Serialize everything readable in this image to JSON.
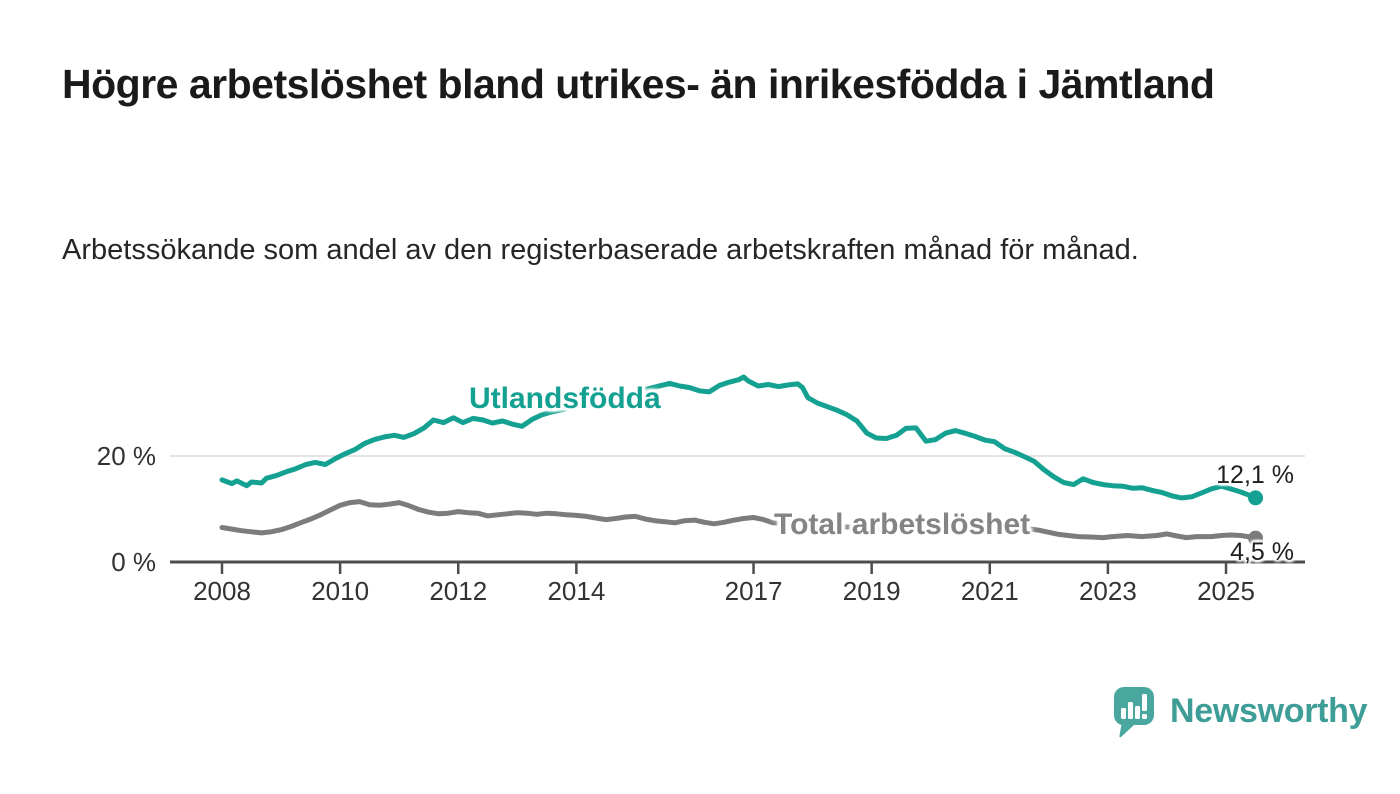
{
  "title": "Högre arbetslöshet bland utrikes- än inrikesfödda i Jämtland",
  "subtitle": "Arbetssökande som andel av den registerbaserade arbetskraften månad för månad.",
  "brand": {
    "name": "Newsworthy",
    "icon": "newsworthy-speech-bubble-chart-icon",
    "icon_color": "#4aa79f",
    "text_color": "#3e9d96"
  },
  "colors": {
    "foreign_born_line": "#14a191",
    "total_line": "#7c7c7c",
    "axis": "#4d4d4d",
    "gridline": "#e4e4e4",
    "tick_text": "#333333"
  },
  "chart_data": {
    "type": "line",
    "title": "Högre arbetslöshet bland utrikes- än inrikesfödda i Jämtland",
    "subtitle": "Arbetssökande som andel av den registerbaserade arbetskraften månad för månad.",
    "unit": "%",
    "xlim": [
      2007.1,
      2026.35
    ],
    "ylim": [
      0,
      37
    ],
    "grid": "y-only-at-20",
    "legend_position": "inline-labels-on-lines",
    "yticks": [
      {
        "value": 0,
        "label": "0 %"
      },
      {
        "value": 20,
        "label": "20 %"
      }
    ],
    "xticks": [
      {
        "value": 2008,
        "label": "2008"
      },
      {
        "value": 2010,
        "label": "2010"
      },
      {
        "value": 2012,
        "label": "2012"
      },
      {
        "value": 2014,
        "label": "2014"
      },
      {
        "value": 2017,
        "label": "2017"
      },
      {
        "value": 2019,
        "label": "2019"
      },
      {
        "value": 2021,
        "label": "2021"
      },
      {
        "value": 2023,
        "label": "2023"
      },
      {
        "value": 2025,
        "label": "2025"
      }
    ],
    "series": [
      {
        "name": "Utlandsfödda",
        "color": "#14a191",
        "end_label": "12,1 %",
        "end_value": 12.1,
        "points": [
          [
            2008.0,
            15.5
          ],
          [
            2008.17,
            14.8
          ],
          [
            2008.25,
            15.3
          ],
          [
            2008.42,
            14.4
          ],
          [
            2008.5,
            15.1
          ],
          [
            2008.67,
            14.9
          ],
          [
            2008.75,
            15.8
          ],
          [
            2008.92,
            16.3
          ],
          [
            2009.08,
            17.0
          ],
          [
            2009.25,
            17.6
          ],
          [
            2009.42,
            18.4
          ],
          [
            2009.58,
            18.8
          ],
          [
            2009.75,
            18.4
          ],
          [
            2009.92,
            19.5
          ],
          [
            2010.08,
            20.4
          ],
          [
            2010.25,
            21.2
          ],
          [
            2010.42,
            22.4
          ],
          [
            2010.58,
            23.1
          ],
          [
            2010.75,
            23.6
          ],
          [
            2010.92,
            23.9
          ],
          [
            2011.08,
            23.5
          ],
          [
            2011.25,
            24.2
          ],
          [
            2011.42,
            25.3
          ],
          [
            2011.58,
            26.8
          ],
          [
            2011.75,
            26.3
          ],
          [
            2011.92,
            27.2
          ],
          [
            2012.08,
            26.3
          ],
          [
            2012.25,
            27.1
          ],
          [
            2012.42,
            26.8
          ],
          [
            2012.58,
            26.2
          ],
          [
            2012.75,
            26.6
          ],
          [
            2012.92,
            26.0
          ],
          [
            2013.08,
            25.6
          ],
          [
            2013.25,
            26.9
          ],
          [
            2013.42,
            27.8
          ],
          [
            2013.58,
            28.3
          ],
          [
            2013.83,
            28.9
          ],
          [
            2014.08,
            29.6
          ],
          [
            2014.33,
            30.2
          ],
          [
            2014.58,
            30.9
          ],
          [
            2014.83,
            31.6
          ],
          [
            2015.08,
            32.3
          ],
          [
            2015.33,
            33.0
          ],
          [
            2015.58,
            33.7
          ],
          [
            2015.75,
            33.2
          ],
          [
            2015.92,
            32.9
          ],
          [
            2016.08,
            32.3
          ],
          [
            2016.25,
            32.1
          ],
          [
            2016.42,
            33.3
          ],
          [
            2016.58,
            33.9
          ],
          [
            2016.75,
            34.4
          ],
          [
            2016.83,
            34.9
          ],
          [
            2016.92,
            34.1
          ],
          [
            2017.08,
            33.2
          ],
          [
            2017.25,
            33.5
          ],
          [
            2017.42,
            33.1
          ],
          [
            2017.58,
            33.4
          ],
          [
            2017.75,
            33.6
          ],
          [
            2017.83,
            32.9
          ],
          [
            2017.92,
            31.0
          ],
          [
            2018.08,
            30.0
          ],
          [
            2018.25,
            29.3
          ],
          [
            2018.42,
            28.6
          ],
          [
            2018.58,
            27.8
          ],
          [
            2018.75,
            26.6
          ],
          [
            2018.92,
            24.3
          ],
          [
            2019.08,
            23.4
          ],
          [
            2019.25,
            23.3
          ],
          [
            2019.42,
            23.9
          ],
          [
            2019.58,
            25.2
          ],
          [
            2019.75,
            25.3
          ],
          [
            2019.92,
            22.8
          ],
          [
            2020.08,
            23.1
          ],
          [
            2020.25,
            24.3
          ],
          [
            2020.42,
            24.8
          ],
          [
            2020.58,
            24.3
          ],
          [
            2020.75,
            23.7
          ],
          [
            2020.92,
            23.0
          ],
          [
            2021.08,
            22.7
          ],
          [
            2021.25,
            21.4
          ],
          [
            2021.42,
            20.7
          ],
          [
            2021.58,
            19.9
          ],
          [
            2021.75,
            19.0
          ],
          [
            2021.92,
            17.4
          ],
          [
            2022.08,
            16.1
          ],
          [
            2022.25,
            15.0
          ],
          [
            2022.42,
            14.6
          ],
          [
            2022.58,
            15.7
          ],
          [
            2022.75,
            15.0
          ],
          [
            2022.92,
            14.6
          ],
          [
            2023.08,
            14.4
          ],
          [
            2023.25,
            14.3
          ],
          [
            2023.42,
            13.9
          ],
          [
            2023.58,
            14.0
          ],
          [
            2023.75,
            13.5
          ],
          [
            2023.92,
            13.1
          ],
          [
            2024.08,
            12.5
          ],
          [
            2024.25,
            12.1
          ],
          [
            2024.42,
            12.3
          ],
          [
            2024.58,
            13.0
          ],
          [
            2024.75,
            13.8
          ],
          [
            2024.92,
            14.3
          ],
          [
            2025.08,
            13.8
          ],
          [
            2025.25,
            13.2
          ],
          [
            2025.42,
            12.5
          ],
          [
            2025.5,
            12.1
          ]
        ]
      },
      {
        "name": "Total arbetslöshet",
        "color": "#7c7c7c",
        "end_label": "4,5 %",
        "end_value": 4.5,
        "points": [
          [
            2008.0,
            6.5
          ],
          [
            2008.17,
            6.2
          ],
          [
            2008.33,
            5.9
          ],
          [
            2008.5,
            5.7
          ],
          [
            2008.67,
            5.5
          ],
          [
            2008.83,
            5.7
          ],
          [
            2009.0,
            6.1
          ],
          [
            2009.17,
            6.7
          ],
          [
            2009.33,
            7.4
          ],
          [
            2009.5,
            8.1
          ],
          [
            2009.67,
            8.9
          ],
          [
            2009.83,
            9.8
          ],
          [
            2010.0,
            10.7
          ],
          [
            2010.17,
            11.2
          ],
          [
            2010.33,
            11.4
          ],
          [
            2010.5,
            10.8
          ],
          [
            2010.67,
            10.7
          ],
          [
            2010.83,
            10.9
          ],
          [
            2011.0,
            11.2
          ],
          [
            2011.17,
            10.6
          ],
          [
            2011.33,
            9.9
          ],
          [
            2011.5,
            9.4
          ],
          [
            2011.67,
            9.1
          ],
          [
            2011.83,
            9.2
          ],
          [
            2012.0,
            9.5
          ],
          [
            2012.17,
            9.3
          ],
          [
            2012.33,
            9.2
          ],
          [
            2012.5,
            8.7
          ],
          [
            2012.67,
            8.9
          ],
          [
            2012.83,
            9.1
          ],
          [
            2013.0,
            9.3
          ],
          [
            2013.17,
            9.2
          ],
          [
            2013.33,
            9.0
          ],
          [
            2013.5,
            9.2
          ],
          [
            2013.67,
            9.1
          ],
          [
            2013.83,
            8.9
          ],
          [
            2014.0,
            8.8
          ],
          [
            2014.17,
            8.6
          ],
          [
            2014.33,
            8.3
          ],
          [
            2014.5,
            8.0
          ],
          [
            2014.67,
            8.2
          ],
          [
            2014.83,
            8.5
          ],
          [
            2015.0,
            8.6
          ],
          [
            2015.17,
            8.1
          ],
          [
            2015.33,
            7.8
          ],
          [
            2015.5,
            7.6
          ],
          [
            2015.67,
            7.4
          ],
          [
            2015.83,
            7.8
          ],
          [
            2016.0,
            7.9
          ],
          [
            2016.17,
            7.5
          ],
          [
            2016.33,
            7.2
          ],
          [
            2016.5,
            7.5
          ],
          [
            2016.67,
            7.9
          ],
          [
            2016.83,
            8.2
          ],
          [
            2017.0,
            8.4
          ],
          [
            2017.17,
            8.0
          ],
          [
            2017.33,
            7.4
          ],
          [
            2017.58,
            7.2
          ],
          [
            2017.83,
            7.1
          ],
          [
            2018.08,
            7.0
          ],
          [
            2018.33,
            6.8
          ],
          [
            2018.58,
            6.6
          ],
          [
            2018.83,
            6.5
          ],
          [
            2019.08,
            6.4
          ],
          [
            2019.33,
            6.3
          ],
          [
            2019.58,
            6.4
          ],
          [
            2019.83,
            6.5
          ],
          [
            2020.08,
            6.8
          ],
          [
            2020.33,
            7.8
          ],
          [
            2020.58,
            7.9
          ],
          [
            2020.83,
            7.6
          ],
          [
            2021.08,
            7.2
          ],
          [
            2021.33,
            6.8
          ],
          [
            2021.58,
            6.4
          ],
          [
            2021.83,
            6.0
          ],
          [
            2022.0,
            5.6
          ],
          [
            2022.17,
            5.2
          ],
          [
            2022.33,
            5.0
          ],
          [
            2022.5,
            4.8
          ],
          [
            2022.75,
            4.7
          ],
          [
            2022.92,
            4.6
          ],
          [
            2023.08,
            4.8
          ],
          [
            2023.33,
            5.0
          ],
          [
            2023.58,
            4.8
          ],
          [
            2023.83,
            5.0
          ],
          [
            2024.0,
            5.3
          ],
          [
            2024.17,
            4.9
          ],
          [
            2024.33,
            4.6
          ],
          [
            2024.5,
            4.8
          ],
          [
            2024.75,
            4.8
          ],
          [
            2024.92,
            5.0
          ],
          [
            2025.08,
            5.1
          ],
          [
            2025.25,
            5.0
          ],
          [
            2025.42,
            4.7
          ],
          [
            2025.5,
            4.5
          ]
        ]
      }
    ]
  }
}
